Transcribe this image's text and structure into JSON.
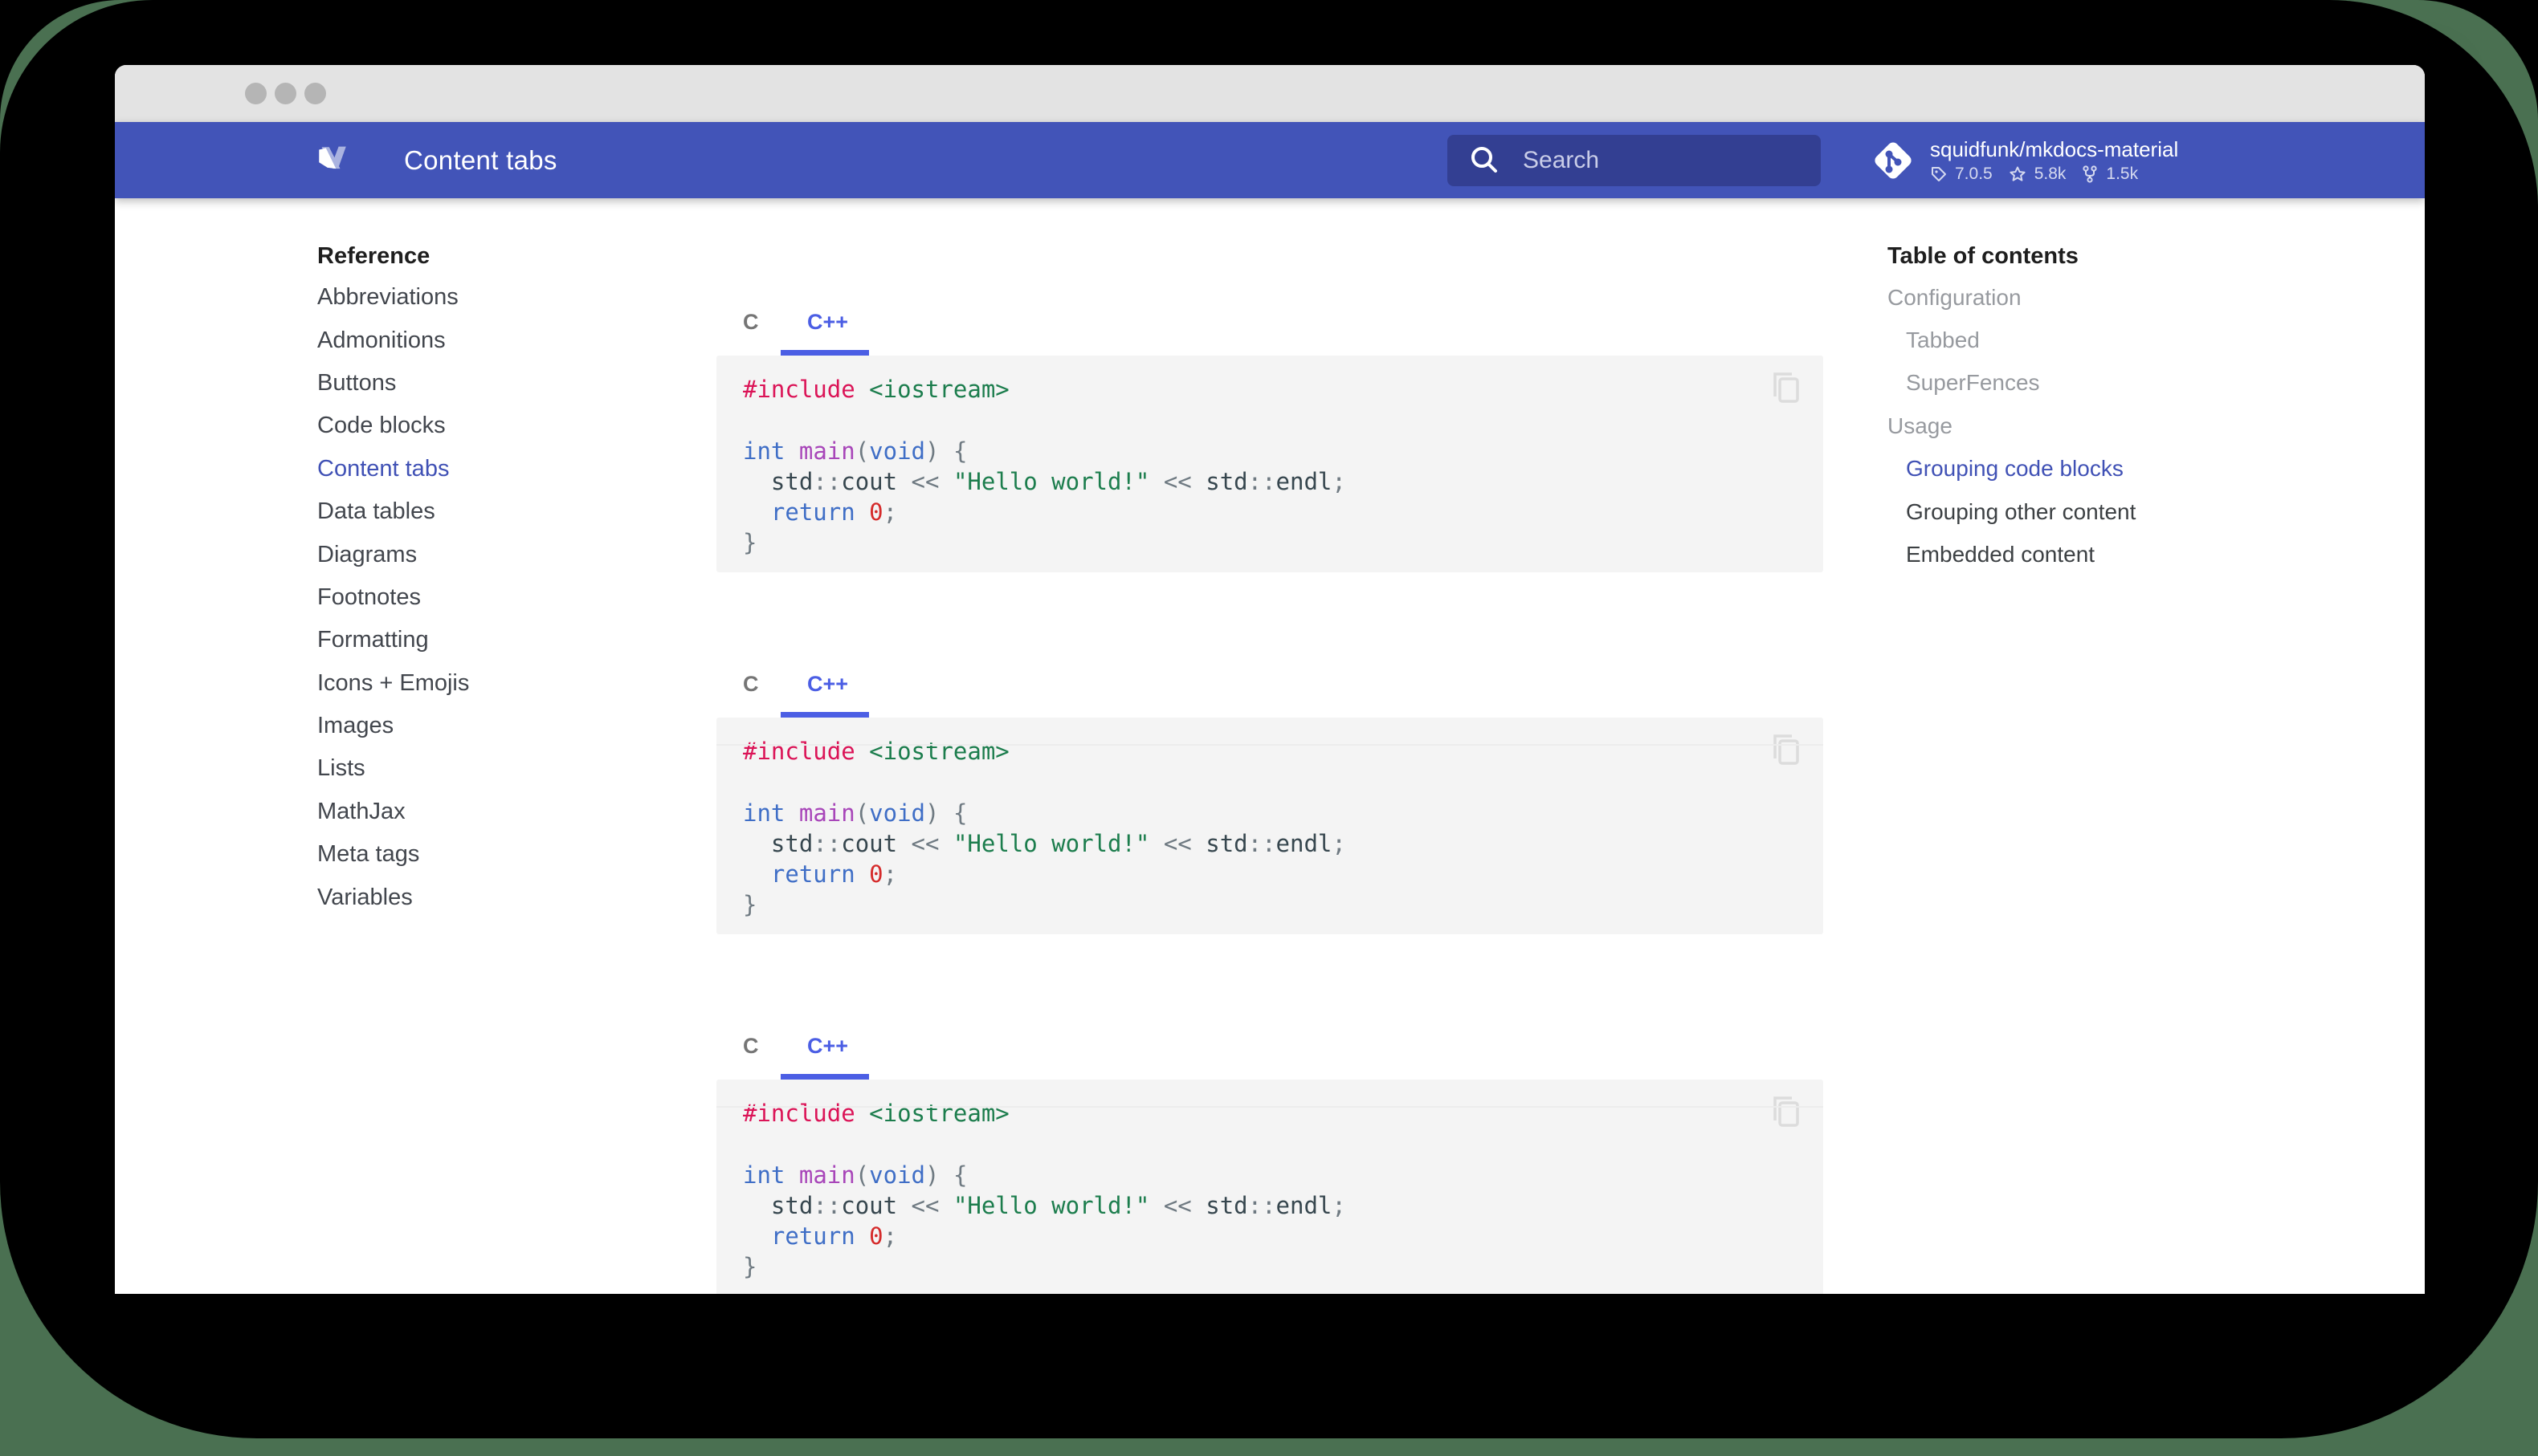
{
  "window": {
    "controls": [
      "close",
      "minimize",
      "maximize"
    ]
  },
  "header": {
    "title": "Content tabs",
    "search": {
      "placeholder": "Search"
    },
    "repo": {
      "name": "squidfunk/mkdocs-material",
      "version": "7.0.5",
      "stars": "5.8k",
      "forks": "1.5k"
    }
  },
  "sidebar": {
    "heading": "Reference",
    "items": [
      {
        "label": "Abbreviations",
        "active": false
      },
      {
        "label": "Admonitions",
        "active": false
      },
      {
        "label": "Buttons",
        "active": false
      },
      {
        "label": "Code blocks",
        "active": false
      },
      {
        "label": "Content tabs",
        "active": true
      },
      {
        "label": "Data tables",
        "active": false
      },
      {
        "label": "Diagrams",
        "active": false
      },
      {
        "label": "Footnotes",
        "active": false
      },
      {
        "label": "Formatting",
        "active": false
      },
      {
        "label": "Icons + Emojis",
        "active": false
      },
      {
        "label": "Images",
        "active": false
      },
      {
        "label": "Lists",
        "active": false
      },
      {
        "label": "MathJax",
        "active": false
      },
      {
        "label": "Meta tags",
        "active": false
      },
      {
        "label": "Variables",
        "active": false
      }
    ]
  },
  "toc": {
    "heading": "Table of contents",
    "items": [
      {
        "label": "Configuration",
        "level": 1,
        "tone": "muted"
      },
      {
        "label": "Tabbed",
        "level": 2,
        "tone": "muted"
      },
      {
        "label": "SuperFences",
        "level": 2,
        "tone": "muted"
      },
      {
        "label": "Usage",
        "level": 1,
        "tone": "muted"
      },
      {
        "label": "Grouping code blocks",
        "level": 2,
        "tone": "active"
      },
      {
        "label": "Grouping other content",
        "level": 2,
        "tone": "dark"
      },
      {
        "label": "Embedded content",
        "level": 2,
        "tone": "dark"
      }
    ]
  },
  "main": {
    "tab_groups": [
      {
        "tabs": [
          {
            "label": "C",
            "active": false
          },
          {
            "label": "C++",
            "active": true
          }
        ]
      },
      {
        "tabs": [
          {
            "label": "C",
            "active": false
          },
          {
            "label": "C++",
            "active": true
          }
        ]
      },
      {
        "tabs": [
          {
            "label": "C",
            "active": false
          },
          {
            "label": "C++",
            "active": true
          }
        ]
      }
    ],
    "code_lines": [
      [
        {
          "t": "#include",
          "c": "special"
        },
        {
          "t": " ",
          "c": "plain"
        },
        {
          "t": "<iostream>",
          "c": "string"
        }
      ],
      [],
      [
        {
          "t": "int",
          "c": "keyword"
        },
        {
          "t": " ",
          "c": "plain"
        },
        {
          "t": "main",
          "c": "function"
        },
        {
          "t": "(",
          "c": "punct"
        },
        {
          "t": "void",
          "c": "keyword"
        },
        {
          "t": ")",
          "c": "punct"
        },
        {
          "t": " ",
          "c": "plain"
        },
        {
          "t": "{",
          "c": "punct"
        }
      ],
      [
        {
          "t": "  ",
          "c": "plain"
        },
        {
          "t": "std",
          "c": "plain"
        },
        {
          "t": "::",
          "c": "punct"
        },
        {
          "t": "cout",
          "c": "plain"
        },
        {
          "t": " ",
          "c": "plain"
        },
        {
          "t": "<<",
          "c": "punct"
        },
        {
          "t": " ",
          "c": "plain"
        },
        {
          "t": "\"Hello world!\"",
          "c": "string"
        },
        {
          "t": " ",
          "c": "plain"
        },
        {
          "t": "<<",
          "c": "punct"
        },
        {
          "t": " ",
          "c": "plain"
        },
        {
          "t": "std",
          "c": "plain"
        },
        {
          "t": "::",
          "c": "punct"
        },
        {
          "t": "endl",
          "c": "plain"
        },
        {
          "t": ";",
          "c": "punct"
        }
      ],
      [
        {
          "t": "  ",
          "c": "plain"
        },
        {
          "t": "return",
          "c": "keyword"
        },
        {
          "t": " ",
          "c": "plain"
        },
        {
          "t": "0",
          "c": "number"
        },
        {
          "t": ";",
          "c": "punct"
        }
      ],
      [
        {
          "t": "}",
          "c": "punct"
        }
      ]
    ]
  },
  "colors": {
    "primary": "#4254b8",
    "accent": "#4b5ee4",
    "link_blue": "#4051b5",
    "backdrop_green": "#4a7051",
    "code_bg": "#f4f4f4",
    "code": {
      "plain": "#36464e",
      "punct": "#6f7a82",
      "keyword": "#3f6ec6",
      "function": "#a846b9",
      "string": "#1c7d4d",
      "special": "#db1457",
      "number": "#d52a2a"
    }
  }
}
